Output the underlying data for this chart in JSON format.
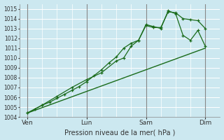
{
  "xlabel": "Pression niveau de la mer( hPa )",
  "bg_color": "#cce8f0",
  "grid_color": "#ffffff",
  "line_color": "#1a6b1a",
  "ylim": [
    1004,
    1015.5
  ],
  "yticks": [
    1004,
    1005,
    1006,
    1007,
    1008,
    1009,
    1010,
    1011,
    1012,
    1013,
    1014,
    1015
  ],
  "day_labels": [
    "Ven",
    "Lun",
    "Sam",
    "Dim"
  ],
  "day_positions": [
    0,
    24,
    48,
    72
  ],
  "xmin": -3,
  "xmax": 78,
  "series1_x": [
    0,
    3,
    6,
    9,
    12,
    15,
    18,
    21,
    24,
    27,
    30,
    33,
    36,
    39,
    42,
    45,
    48,
    51,
    54,
    57,
    60,
    63,
    66,
    69,
    72
  ],
  "series1_y": [
    1004.4,
    1004.8,
    1005.2,
    1005.5,
    1005.9,
    1006.3,
    1006.7,
    1007.1,
    1007.6,
    1008.2,
    1008.8,
    1009.5,
    1010.1,
    1011.0,
    1011.5,
    1011.8,
    1013.3,
    1013.1,
    1013.1,
    1014.7,
    1014.6,
    1014.0,
    1013.9,
    1013.8,
    1013.0
  ],
  "series2_x": [
    0,
    6,
    12,
    18,
    24,
    30,
    36,
    39,
    42,
    45,
    48,
    51,
    54,
    57,
    60,
    63,
    66,
    69,
    72
  ],
  "series2_y": [
    1004.4,
    1005.2,
    1006.1,
    1007.0,
    1007.8,
    1008.5,
    1009.7,
    1010.0,
    1011.2,
    1011.8,
    1013.4,
    1013.2,
    1013.0,
    1014.8,
    1014.5,
    1012.3,
    1011.8,
    1012.8,
    1011.2
  ],
  "series3_x": [
    0,
    72
  ],
  "series3_y": [
    1004.4,
    1011.0
  ]
}
